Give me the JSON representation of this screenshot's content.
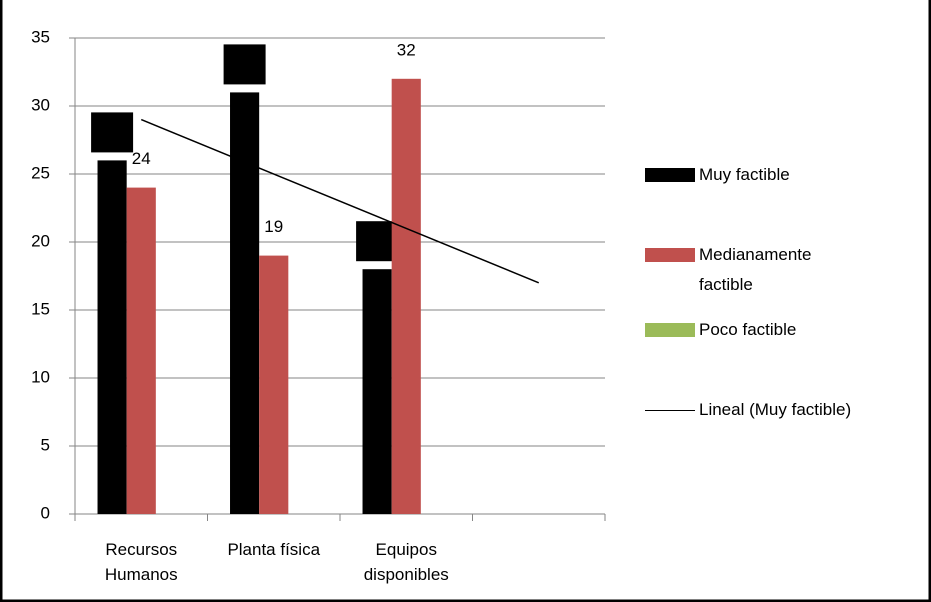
{
  "chart_data": {
    "type": "bar",
    "categories": [
      "Recursos Humanos",
      "Planta física",
      "Equipos disponibles",
      null
    ],
    "series": [
      {
        "name": "Muy factible",
        "color": "#000000",
        "values": [
          26,
          31,
          18,
          null
        ],
        "data_labels": true,
        "label_background": "#000000",
        "trendline": "Lineal (Muy factible)"
      },
      {
        "name": "Medianamente factible",
        "color": "#c0504d",
        "values": [
          24,
          19,
          32,
          null
        ],
        "data_labels": true
      },
      {
        "name": "Poco factible",
        "color": "#9bbb59",
        "values": [
          null,
          null,
          null,
          null
        ]
      }
    ],
    "ylim": [
      0,
      35
    ],
    "yticks": [
      0,
      5,
      10,
      15,
      20,
      25,
      30,
      35
    ],
    "grid": true,
    "legend": "right"
  }
}
